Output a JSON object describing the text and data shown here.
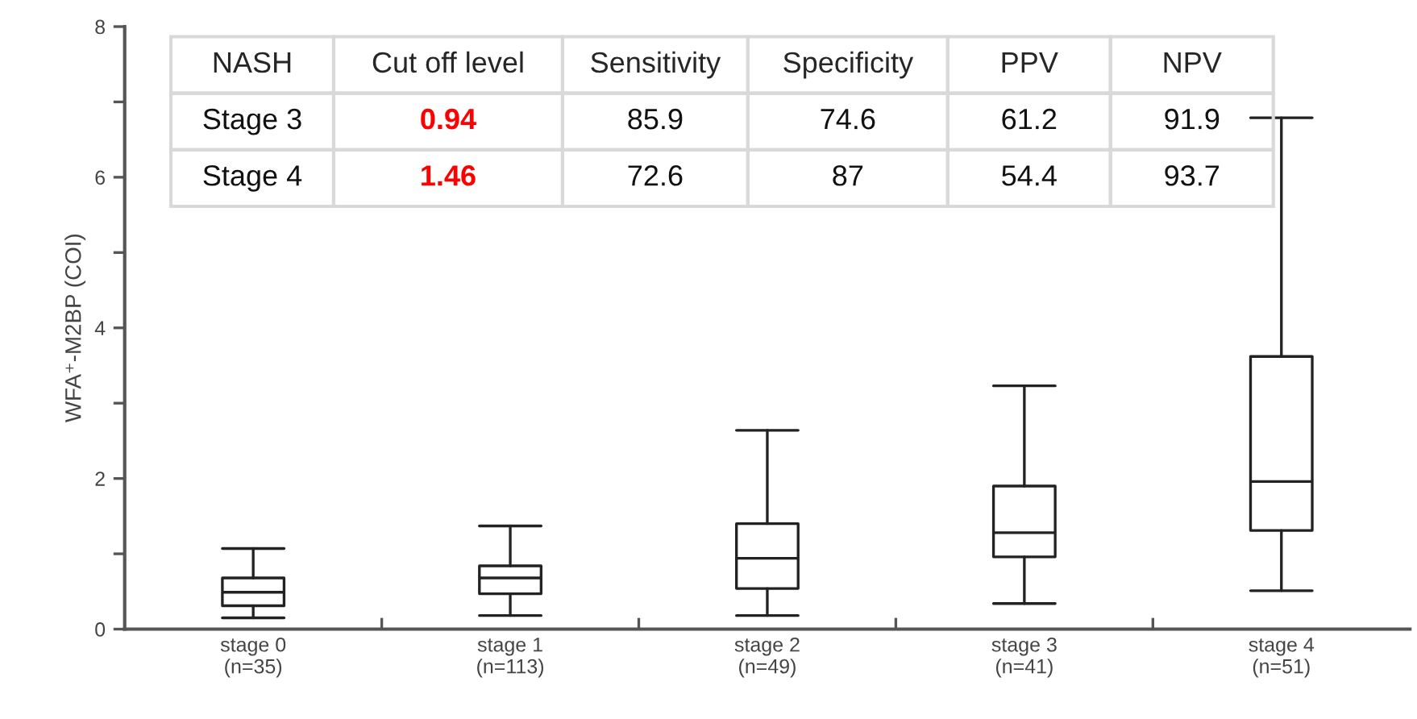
{
  "chart_data": [
    {
      "type": "box",
      "ylabel": "WFA⁺-M2BP (COI)",
      "categories": [
        "stage 0\n(n=35)",
        "stage 1\n(n=113)",
        "stage 2\n(n=49)",
        "stage 3\n(n=41)",
        "stage 4\n(n=51)"
      ],
      "boxes": [
        {
          "low": 0.15,
          "q1": 0.31,
          "median": 0.49,
          "q3": 0.68,
          "high": 1.07
        },
        {
          "low": 0.18,
          "q1": 0.47,
          "median": 0.68,
          "q3": 0.84,
          "high": 1.37
        },
        {
          "low": 0.18,
          "q1": 0.54,
          "median": 0.94,
          "q3": 1.4,
          "high": 2.64
        },
        {
          "low": 0.34,
          "q1": 0.96,
          "median": 1.28,
          "q3": 1.9,
          "high": 3.23
        },
        {
          "low": 0.51,
          "q1": 1.31,
          "median": 1.96,
          "q3": 3.62,
          "high": 6.79
        }
      ],
      "color": "#222222",
      "ylim": [
        0,
        8
      ],
      "yticks": [
        0,
        {
          "value": 1,
          "label": null
        },
        2,
        {
          "value": 3,
          "label": null
        },
        4,
        {
          "value": 5,
          "label": null
        },
        6,
        {
          "value": 7,
          "label": null
        },
        8
      ],
      "grid": false
    },
    {
      "type": "other",
      "categories": [
        "NASH",
        "Cut off level",
        "Sensitivity",
        "Specificity",
        "PPV",
        "NPV"
      ],
      "annotations": [
        "Stage 3",
        "0.94",
        "85.9",
        "74.6",
        "61.2",
        "91.9",
        "Stage 4",
        "1.46",
        "72.6",
        "87",
        "54.4",
        "93.7"
      ],
      "colors": [
        "#111111",
        "#ff0000",
        "#111111",
        "#111111",
        "#111111",
        "#111111"
      ]
    }
  ]
}
